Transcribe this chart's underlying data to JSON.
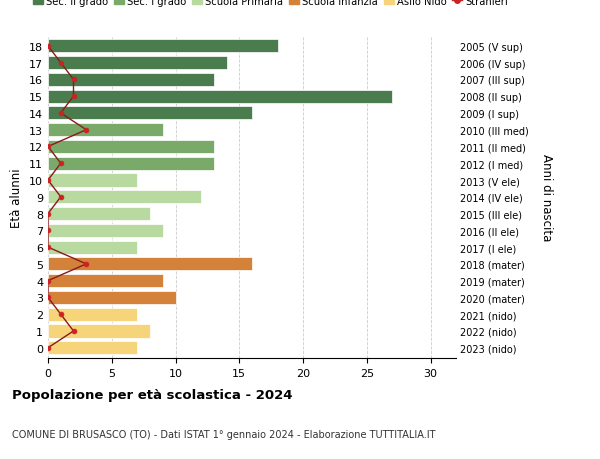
{
  "ages": [
    18,
    17,
    16,
    15,
    14,
    13,
    12,
    11,
    10,
    9,
    8,
    7,
    6,
    5,
    4,
    3,
    2,
    1,
    0
  ],
  "values": [
    18,
    14,
    13,
    27,
    16,
    9,
    13,
    13,
    7,
    12,
    8,
    9,
    7,
    16,
    9,
    10,
    7,
    8,
    7
  ],
  "right_labels": [
    "2005 (V sup)",
    "2006 (IV sup)",
    "2007 (III sup)",
    "2008 (II sup)",
    "2009 (I sup)",
    "2010 (III med)",
    "2011 (II med)",
    "2012 (I med)",
    "2013 (V ele)",
    "2014 (IV ele)",
    "2015 (III ele)",
    "2016 (II ele)",
    "2017 (I ele)",
    "2018 (mater)",
    "2019 (mater)",
    "2020 (mater)",
    "2021 (nido)",
    "2022 (nido)",
    "2023 (nido)"
  ],
  "bar_colors": [
    "#4a7c4e",
    "#4a7c4e",
    "#4a7c4e",
    "#4a7c4e",
    "#4a7c4e",
    "#7aaa6a",
    "#7aaa6a",
    "#7aaa6a",
    "#b8d9a0",
    "#b8d9a0",
    "#b8d9a0",
    "#b8d9a0",
    "#b8d9a0",
    "#d4813a",
    "#d4813a",
    "#d4813a",
    "#f5d47a",
    "#f5d47a",
    "#f5d47a"
  ],
  "stranieri_x": [
    0,
    1,
    2,
    2,
    1,
    3,
    0,
    1,
    0,
    1,
    0,
    0,
    0,
    3,
    0,
    0,
    1,
    2,
    0
  ],
  "legend_labels": [
    "Sec. II grado",
    "Sec. I grado",
    "Scuola Primaria",
    "Scuola Infanzia",
    "Asilo Nido",
    "Stranieri"
  ],
  "legend_colors": [
    "#4a7c4e",
    "#7aaa6a",
    "#b8d9a0",
    "#d4813a",
    "#f5d47a",
    "#b22222"
  ],
  "ylabel": "Età alunni",
  "right_ylabel": "Anni di nascita",
  "title": "Popolazione per età scolastica - 2024",
  "subtitle": "COMUNE DI BRUSASCO (TO) - Dati ISTAT 1° gennaio 2024 - Elaborazione TUTTITALIA.IT",
  "xlim": [
    0,
    32
  ],
  "xticks": [
    0,
    5,
    10,
    15,
    20,
    25,
    30
  ],
  "background_color": "#ffffff",
  "grid_color": "#cccccc"
}
